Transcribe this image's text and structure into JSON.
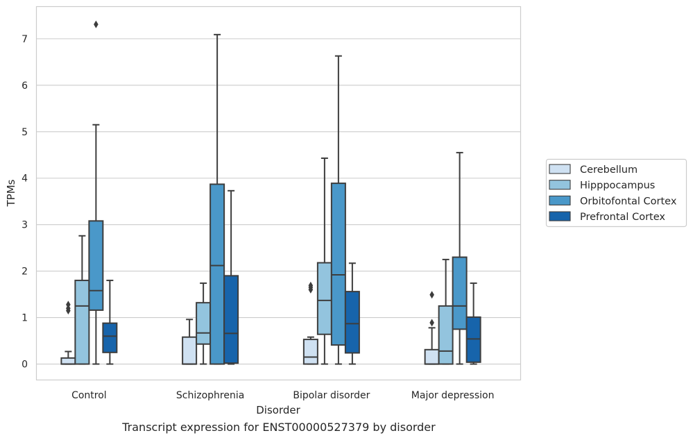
{
  "caption": "Transcript expression for ENST00000527379 by disorder",
  "colors": {
    "Cerebellum": "#cfe1f2",
    "Hipppocampus": "#93c4de",
    "Orbitofontal Cortex": "#4a98c9",
    "Prefrontal Cortex": "#1764ab",
    "box_edge": "#3d3d3d",
    "grid": "#cccccc",
    "frame": "#cccccc"
  },
  "chart_data": {
    "type": "box",
    "title": "",
    "xlabel": "Disorder",
    "ylabel": "TPMs",
    "ylim": [
      -0.35,
      7.7
    ],
    "yticks": [
      0,
      1,
      2,
      3,
      4,
      5,
      6,
      7
    ],
    "grid": "horizontal",
    "legend_position": "right",
    "categories": [
      "Control",
      "Schizophrenia",
      "Bipolar disorder",
      "Major depression"
    ],
    "series": [
      {
        "name": "Cerebellum",
        "boxes": [
          {
            "whislo": 0,
            "q1": 0,
            "med": 0,
            "q3": 0.13,
            "whishi": 0.27,
            "fliers": [
              1.15,
              1.2,
              1.28
            ]
          },
          {
            "whislo": 0,
            "q1": 0,
            "med": 0,
            "q3": 0.58,
            "whishi": 0.96,
            "fliers": []
          },
          {
            "whislo": 0,
            "q1": 0,
            "med": 0.15,
            "q3": 0.53,
            "whishi": 0.58,
            "fliers": [
              1.6,
              1.65,
              1.69
            ]
          },
          {
            "whislo": 0,
            "q1": 0,
            "med": 0,
            "q3": 0.31,
            "whishi": 0.78,
            "fliers": [
              0.89,
              1.49
            ]
          }
        ]
      },
      {
        "name": "Hipppocampus",
        "boxes": [
          {
            "whislo": 0,
            "q1": 0,
            "med": 1.25,
            "q3": 1.8,
            "whishi": 2.76,
            "fliers": []
          },
          {
            "whislo": 0,
            "q1": 0.43,
            "med": 0.67,
            "q3": 1.32,
            "whishi": 1.74,
            "fliers": []
          },
          {
            "whislo": 0,
            "q1": 0.64,
            "med": 1.37,
            "q3": 2.18,
            "whishi": 4.43,
            "fliers": []
          },
          {
            "whislo": 0,
            "q1": 0,
            "med": 0.28,
            "q3": 1.25,
            "whishi": 2.25,
            "fliers": []
          }
        ]
      },
      {
        "name": "Orbitofontal Cortex",
        "boxes": [
          {
            "whislo": 0,
            "q1": 1.16,
            "med": 1.58,
            "q3": 3.08,
            "whishi": 5.15,
            "fliers": [
              7.31
            ]
          },
          {
            "whislo": 0,
            "q1": 0,
            "med": 2.12,
            "q3": 3.87,
            "whishi": 7.09,
            "fliers": []
          },
          {
            "whislo": 0,
            "q1": 0.41,
            "med": 1.92,
            "q3": 3.89,
            "whishi": 6.63,
            "fliers": []
          },
          {
            "whislo": 0,
            "q1": 0.75,
            "med": 1.25,
            "q3": 2.3,
            "whishi": 4.55,
            "fliers": []
          }
        ]
      },
      {
        "name": "Prefrontal Cortex",
        "boxes": [
          {
            "whislo": 0,
            "q1": 0.25,
            "med": 0.6,
            "q3": 0.88,
            "whishi": 1.8,
            "fliers": []
          },
          {
            "whislo": 0,
            "q1": 0.02,
            "med": 0.66,
            "q3": 1.9,
            "whishi": 3.73,
            "fliers": []
          },
          {
            "whislo": 0,
            "q1": 0.24,
            "med": 0.87,
            "q3": 1.56,
            "whishi": 2.17,
            "fliers": []
          },
          {
            "whislo": 0,
            "q1": 0.04,
            "med": 0.54,
            "q3": 1.01,
            "whishi": 1.74,
            "fliers": []
          }
        ]
      }
    ]
  }
}
